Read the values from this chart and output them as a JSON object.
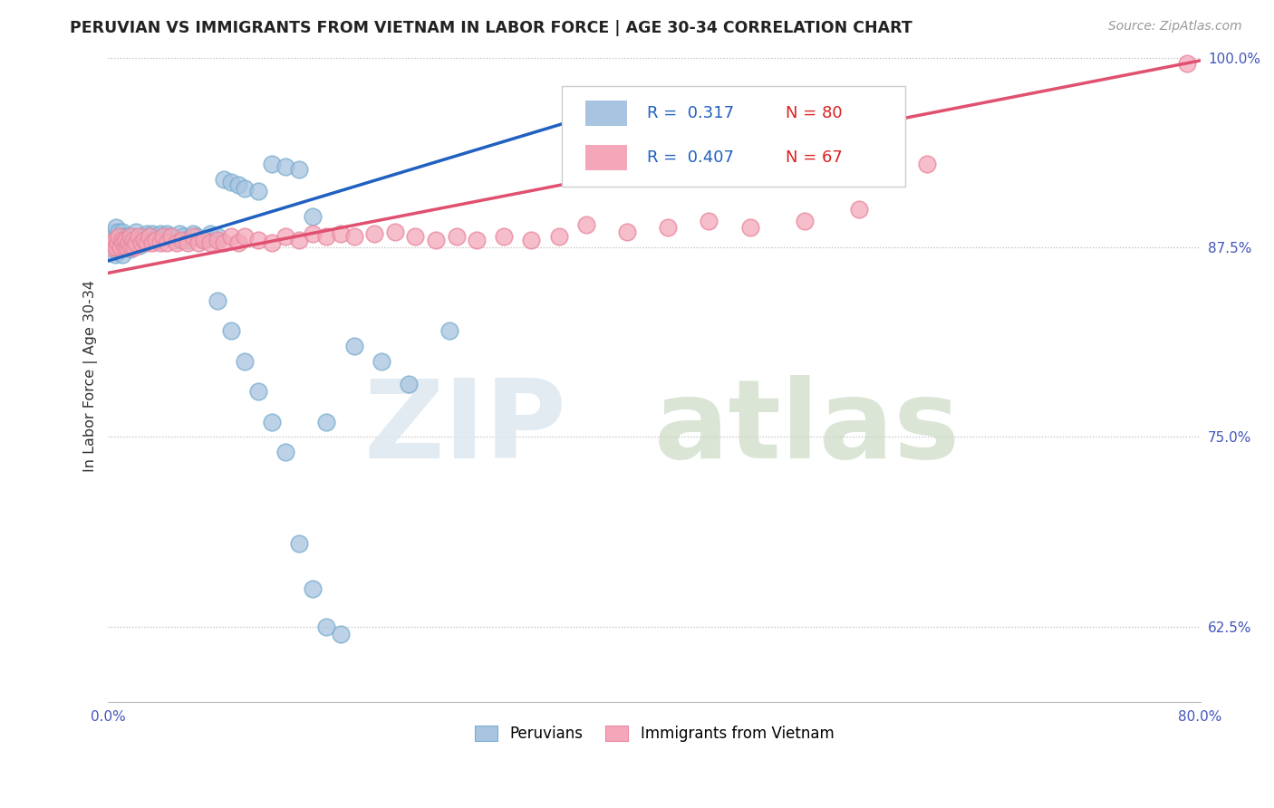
{
  "title": "PERUVIAN VS IMMIGRANTS FROM VIETNAM IN LABOR FORCE | AGE 30-34 CORRELATION CHART",
  "source": "Source: ZipAtlas.com",
  "ylabel": "In Labor Force | Age 30-34",
  "xlim": [
    0.0,
    0.8
  ],
  "ylim": [
    0.575,
    1.005
  ],
  "ytick_positions": [
    0.625,
    0.75,
    0.875,
    1.0
  ],
  "ytick_labels": [
    "62.5%",
    "75.0%",
    "87.5%",
    "100.0%"
  ],
  "legend_blue_label": "Peruvians",
  "legend_pink_label": "Immigrants from Vietnam",
  "r_blue": 0.317,
  "n_blue": 80,
  "r_pink": 0.407,
  "n_pink": 67,
  "blue_color": "#a8c4e0",
  "pink_color": "#f4a7b9",
  "blue_line_color": "#2060c0",
  "pink_line_color": "#e05070",
  "blue_scatter_x": [
    0.002,
    0.003,
    0.004,
    0.004,
    0.005,
    0.005,
    0.006,
    0.006,
    0.007,
    0.007,
    0.008,
    0.008,
    0.009,
    0.009,
    0.01,
    0.01,
    0.01,
    0.011,
    0.011,
    0.012,
    0.012,
    0.013,
    0.013,
    0.014,
    0.014,
    0.015,
    0.015,
    0.016,
    0.016,
    0.017,
    0.018,
    0.019,
    0.02,
    0.02,
    0.022,
    0.023,
    0.025,
    0.026,
    0.028,
    0.03,
    0.032,
    0.034,
    0.036,
    0.038,
    0.04,
    0.043,
    0.045,
    0.048,
    0.052,
    0.055,
    0.058,
    0.062,
    0.065,
    0.07,
    0.075,
    0.08,
    0.085,
    0.09,
    0.095,
    0.1,
    0.11,
    0.12,
    0.13,
    0.14,
    0.15,
    0.16,
    0.18,
    0.2,
    0.22,
    0.25,
    0.08,
    0.09,
    0.1,
    0.11,
    0.12,
    0.13,
    0.14,
    0.15,
    0.16,
    0.17
  ],
  "blue_scatter_y": [
    0.88,
    0.875,
    0.882,
    0.878,
    0.885,
    0.87,
    0.888,
    0.875,
    0.88,
    0.872,
    0.885,
    0.878,
    0.882,
    0.875,
    0.885,
    0.878,
    0.87,
    0.882,
    0.876,
    0.88,
    0.875,
    0.882,
    0.876,
    0.88,
    0.875,
    0.882,
    0.876,
    0.88,
    0.874,
    0.878,
    0.882,
    0.876,
    0.885,
    0.878,
    0.88,
    0.876,
    0.882,
    0.878,
    0.884,
    0.882,
    0.884,
    0.88,
    0.882,
    0.884,
    0.882,
    0.884,
    0.882,
    0.88,
    0.884,
    0.882,
    0.88,
    0.884,
    0.882,
    0.88,
    0.884,
    0.882,
    0.92,
    0.918,
    0.916,
    0.914,
    0.912,
    0.93,
    0.928,
    0.926,
    0.895,
    0.76,
    0.81,
    0.8,
    0.785,
    0.82,
    0.84,
    0.82,
    0.8,
    0.78,
    0.76,
    0.74,
    0.68,
    0.65,
    0.625,
    0.62
  ],
  "pink_scatter_x": [
    0.002,
    0.003,
    0.005,
    0.006,
    0.007,
    0.008,
    0.009,
    0.01,
    0.011,
    0.012,
    0.013,
    0.014,
    0.015,
    0.016,
    0.017,
    0.018,
    0.019,
    0.02,
    0.022,
    0.024,
    0.026,
    0.028,
    0.03,
    0.032,
    0.035,
    0.038,
    0.04,
    0.043,
    0.046,
    0.05,
    0.054,
    0.058,
    0.062,
    0.066,
    0.07,
    0.075,
    0.08,
    0.085,
    0.09,
    0.095,
    0.1,
    0.11,
    0.12,
    0.13,
    0.14,
    0.15,
    0.16,
    0.17,
    0.18,
    0.195,
    0.21,
    0.225,
    0.24,
    0.255,
    0.27,
    0.29,
    0.31,
    0.33,
    0.35,
    0.38,
    0.41,
    0.44,
    0.47,
    0.51,
    0.55,
    0.6,
    0.79
  ],
  "pink_scatter_y": [
    0.875,
    0.878,
    0.88,
    0.875,
    0.878,
    0.882,
    0.875,
    0.88,
    0.878,
    0.875,
    0.88,
    0.875,
    0.878,
    0.882,
    0.875,
    0.88,
    0.875,
    0.878,
    0.882,
    0.878,
    0.88,
    0.878,
    0.882,
    0.878,
    0.88,
    0.878,
    0.882,
    0.878,
    0.882,
    0.878,
    0.88,
    0.878,
    0.882,
    0.878,
    0.88,
    0.878,
    0.88,
    0.878,
    0.882,
    0.878,
    0.882,
    0.88,
    0.878,
    0.882,
    0.88,
    0.884,
    0.882,
    0.884,
    0.882,
    0.884,
    0.885,
    0.882,
    0.88,
    0.882,
    0.88,
    0.882,
    0.88,
    0.882,
    0.89,
    0.885,
    0.888,
    0.892,
    0.888,
    0.892,
    0.9,
    0.93,
    0.996
  ],
  "blue_line_x0": 0.0,
  "blue_line_y0": 0.866,
  "blue_line_x1": 0.42,
  "blue_line_y1": 0.98,
  "pink_line_x0": 0.0,
  "pink_line_y0": 0.858,
  "pink_line_x1": 0.8,
  "pink_line_y1": 0.998
}
